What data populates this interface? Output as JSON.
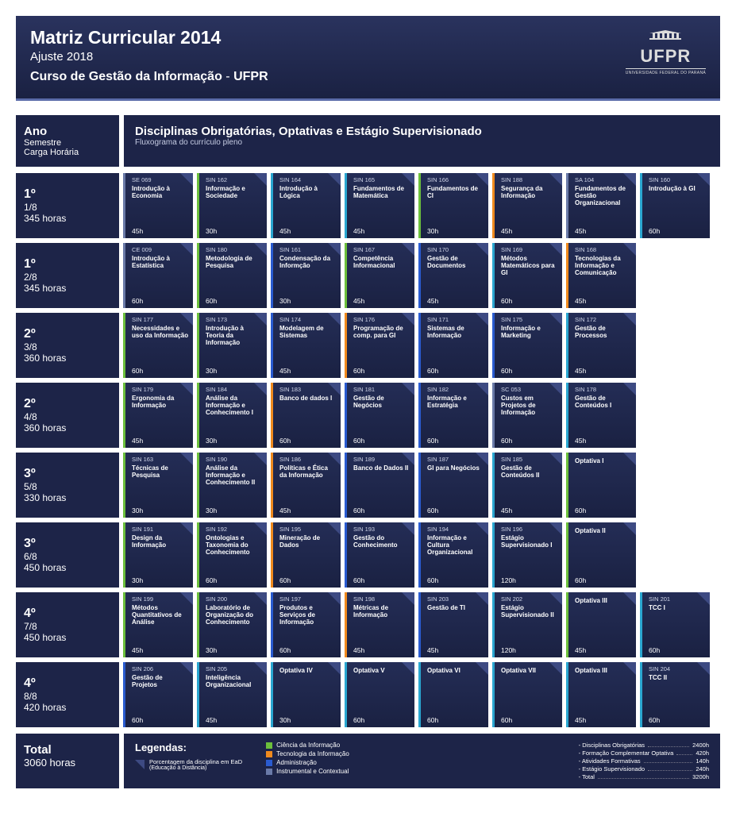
{
  "colors": {
    "green": "#6cbf3c",
    "cyan": "#2aa6d0",
    "blue": "#2a5bd0",
    "orange": "#f08a1e",
    "gray": "#6a7aa8"
  },
  "header": {
    "title": "Matriz Curricular 2014",
    "subtitle1": "Ajuste 2018",
    "subtitle2a": "Curso de Gestão da Informação",
    "subtitle2b": "UFPR",
    "logo_text": "UFPR",
    "logo_sub": "UNIVERSIDADE FEDERAL DO PARANÁ"
  },
  "intro": {
    "left_title": "Ano",
    "left_line1": "Semestre",
    "left_line2": "Carga Horária",
    "right_title": "Disciplinas Obrigatórias, Optativas e Estágio Supervisionado",
    "right_sub": "Fluxograma do currículo pleno"
  },
  "semesters": [
    {
      "year": "1º",
      "frac": "1/8",
      "hours": "345 horas",
      "courses": [
        {
          "code": "SE 069",
          "name": "Introdução à Economia",
          "load": "45h",
          "cat": "gray"
        },
        {
          "code": "SIN 162",
          "name": "Informação e Sociedade",
          "load": "30h",
          "cat": "green"
        },
        {
          "code": "SIN 164",
          "name": "Introdução à Lógica",
          "load": "45h",
          "cat": "cyan"
        },
        {
          "code": "SIN 165",
          "name": "Fundamentos de Matemática",
          "load": "45h",
          "cat": "cyan"
        },
        {
          "code": "SIN 166",
          "name": "Fundamentos de CI",
          "load": "30h",
          "cat": "green"
        },
        {
          "code": "SIN 188",
          "name": "Segurança da Informação",
          "load": "45h",
          "cat": "orange"
        },
        {
          "code": "SA 104",
          "name": "Fundamentos de Gestão Organizacional",
          "load": "45h",
          "cat": "gray"
        },
        {
          "code": "SIN 160",
          "name": "Introdução à GI",
          "load": "60h",
          "cat": "cyan"
        }
      ]
    },
    {
      "year": "1º",
      "frac": "2/8",
      "hours": "345 horas",
      "courses": [
        {
          "code": "CE 009",
          "name": "Introdução à Estatística",
          "load": "60h",
          "cat": "gray"
        },
        {
          "code": "SIN 180",
          "name": "Metodologia de Pesquisa",
          "load": "60h",
          "cat": "green"
        },
        {
          "code": "SIN 161",
          "name": "Condensação da Informção",
          "load": "30h",
          "cat": "blue"
        },
        {
          "code": "SIN 167",
          "name": "Competência Informacional",
          "load": "45h",
          "cat": "green"
        },
        {
          "code": "SIN 170",
          "name": "Gestão de Documentos",
          "load": "45h",
          "cat": "blue"
        },
        {
          "code": "SIN 169",
          "name": "Métodos Matemáticos para GI",
          "load": "60h",
          "cat": "cyan"
        },
        {
          "code": "SIN 168",
          "name": "Tecnologias da Informação e Comunicação",
          "load": "45h",
          "cat": "orange"
        }
      ]
    },
    {
      "year": "2º",
      "frac": "3/8",
      "hours": "360 horas",
      "courses": [
        {
          "code": "SIN 177",
          "name": "Necessidades e uso da Informação",
          "load": "60h",
          "cat": "green"
        },
        {
          "code": "SIN 173",
          "name": "Introdução à Teoria da Informação",
          "load": "30h",
          "cat": "green"
        },
        {
          "code": "SIN 174",
          "name": "Modelagem de Sistemas",
          "load": "45h",
          "cat": "blue"
        },
        {
          "code": "SIN 176",
          "name": "Programação de comp. para GI",
          "load": "60h",
          "cat": "orange"
        },
        {
          "code": "SIN 171",
          "name": "Sistemas de Informação",
          "load": "60h",
          "cat": "blue"
        },
        {
          "code": "SIN 175",
          "name": "Informação e Marketing",
          "load": "60h",
          "cat": "blue"
        },
        {
          "code": "SIN 172",
          "name": "Gestão de Processos",
          "load": "45h",
          "cat": "cyan"
        }
      ]
    },
    {
      "year": "2º",
      "frac": "4/8",
      "hours": "360 horas",
      "courses": [
        {
          "code": "SIN 179",
          "name": "Ergonomia da Informação",
          "load": "45h",
          "cat": "green"
        },
        {
          "code": "SIN 184",
          "name": "Análise da Informação e Conhecimento I",
          "load": "30h",
          "cat": "green"
        },
        {
          "code": "SIN 183",
          "name": "Banco de dados I",
          "load": "60h",
          "cat": "orange"
        },
        {
          "code": "SIN 181",
          "name": "Gestão de Negócios",
          "load": "60h",
          "cat": "blue"
        },
        {
          "code": "SIN 182",
          "name": "Informação e Estratégia",
          "load": "60h",
          "cat": "blue"
        },
        {
          "code": "SC 053",
          "name": "Custos em Projetos de Informação",
          "load": "60h",
          "cat": "gray"
        },
        {
          "code": "SIN 178",
          "name": "Gestão de Conteúdos I",
          "load": "45h",
          "cat": "cyan"
        }
      ]
    },
    {
      "year": "3º",
      "frac": "5/8",
      "hours": "330 horas",
      "courses": [
        {
          "code": "SIN 163",
          "name": "Técnicas de Pesquisa",
          "load": "30h",
          "cat": "green"
        },
        {
          "code": "SIN 190",
          "name": "Análise da Informação e Conhecimento II",
          "load": "30h",
          "cat": "green"
        },
        {
          "code": "SIN 186",
          "name": "Políticas e Ética da Informação",
          "load": "45h",
          "cat": "orange"
        },
        {
          "code": "SIN 189",
          "name": "Banco de Dados II",
          "load": "60h",
          "cat": "blue"
        },
        {
          "code": "SIN 187",
          "name": "GI para Negócios",
          "load": "60h",
          "cat": "blue"
        },
        {
          "code": "SIN 185",
          "name": "Gestão de Conteúdos II",
          "load": "45h",
          "cat": "cyan"
        },
        {
          "code": "",
          "name": "Optativa I",
          "load": "60h",
          "cat": "green"
        }
      ]
    },
    {
      "year": "3º",
      "frac": "6/8",
      "hours": "450 horas",
      "courses": [
        {
          "code": "SIN 191",
          "name": "Design da Informação",
          "load": "30h",
          "cat": "green"
        },
        {
          "code": "SIN 192",
          "name": "Ontologias e Taxonomia do Conhecimento",
          "load": "60h",
          "cat": "green"
        },
        {
          "code": "SIN 195",
          "name": "Mineração de Dados",
          "load": "60h",
          "cat": "orange"
        },
        {
          "code": "SIN 193",
          "name": "Gestão do Conhecimento",
          "load": "60h",
          "cat": "blue"
        },
        {
          "code": "SIN 194",
          "name": "Informação e Cultura Organizacional",
          "load": "60h",
          "cat": "blue"
        },
        {
          "code": "SIN 196",
          "name": "Estágio Supervisionado I",
          "load": "120h",
          "cat": "cyan"
        },
        {
          "code": "",
          "name": "Optativa II",
          "load": "60h",
          "cat": "green"
        }
      ]
    },
    {
      "year": "4º",
      "frac": "7/8",
      "hours": "450 horas",
      "courses": [
        {
          "code": "SIN 199",
          "name": "Métodos Quantitativos de Análise",
          "load": "45h",
          "cat": "green"
        },
        {
          "code": "SIN 200",
          "name": "Laboratório de Organização do Conhecimento",
          "load": "30h",
          "cat": "green"
        },
        {
          "code": "SIN 197",
          "name": "Produtos e Serviços de Informação",
          "load": "60h",
          "cat": "blue"
        },
        {
          "code": "SIN 198",
          "name": "Métricas de Informação",
          "load": "45h",
          "cat": "orange"
        },
        {
          "code": "SIN 203",
          "name": "Gestão de TI",
          "load": "45h",
          "cat": "blue"
        },
        {
          "code": "SIN 202",
          "name": "Estágio Supervisionado II",
          "load": "120h",
          "cat": "cyan"
        },
        {
          "code": "",
          "name": "Optativa III",
          "load": "45h",
          "cat": "green"
        },
        {
          "code": "SIN 201",
          "name": "TCC I",
          "load": "60h",
          "cat": "cyan"
        }
      ]
    },
    {
      "year": "4º",
      "frac": "8/8",
      "hours": "420 horas",
      "courses": [
        {
          "code": "SIN 206",
          "name": "Gestão de Projetos",
          "load": "60h",
          "cat": "blue"
        },
        {
          "code": "SIN 205",
          "name": "Inteligência Organizacional",
          "load": "45h",
          "cat": "cyan"
        },
        {
          "code": "",
          "name": "Optativa IV",
          "load": "30h",
          "cat": "cyan"
        },
        {
          "code": "",
          "name": "Optativa V",
          "load": "60h",
          "cat": "cyan"
        },
        {
          "code": "",
          "name": "Optativa VI",
          "load": "60h",
          "cat": "cyan"
        },
        {
          "code": "",
          "name": "Optativa VII",
          "load": "60h",
          "cat": "cyan"
        },
        {
          "code": "",
          "name": "Optativa III",
          "load": "45h",
          "cat": "cyan"
        },
        {
          "code": "SIN 204",
          "name": "TCC II",
          "load": "60h",
          "cat": "cyan"
        }
      ]
    }
  ],
  "footer": {
    "total_label": "Total",
    "total_hours": "3060 horas",
    "legend_title": "Legendas:",
    "ead_label": "Porcentagem da disciplina em EaD",
    "ead_sub": "(Educação à Distância)",
    "categories": [
      {
        "label": "Ciência da Informação",
        "color": "green"
      },
      {
        "label": "Tecnologia da Informação",
        "color": "orange"
      },
      {
        "label": "Administração",
        "color": "blue"
      },
      {
        "label": "Instrumental e Contextual",
        "color": "gray"
      }
    ],
    "hours": [
      {
        "label": "Disciplinas Obrigatórias",
        "val": "2400h"
      },
      {
        "label": "Formação Complementar Optativa",
        "val": "420h"
      },
      {
        "label": "Atividades Formativas",
        "val": "140h"
      },
      {
        "label": "Estágio Supervisionado",
        "val": "240h"
      },
      {
        "label": "Total",
        "val": "3200h"
      }
    ]
  }
}
